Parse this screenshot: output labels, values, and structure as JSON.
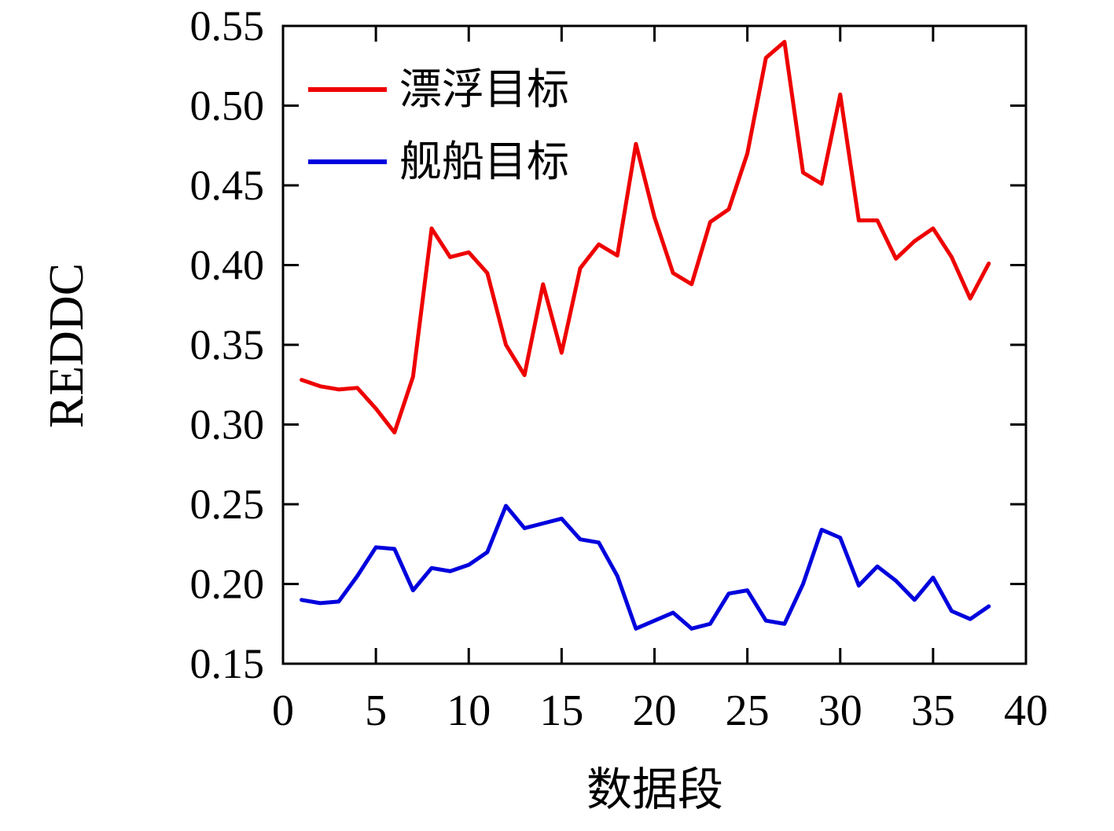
{
  "chart_data": {
    "type": "line",
    "title": "",
    "xlabel": "数据段",
    "ylabel": "REDDC",
    "xlim": [
      0,
      40
    ],
    "ylim": [
      0.15,
      0.55
    ],
    "xticks": [
      0,
      5,
      10,
      15,
      20,
      25,
      30,
      35,
      40
    ],
    "yticks": [
      0.15,
      0.2,
      0.25,
      0.3,
      0.35,
      0.4,
      0.45,
      0.5,
      0.55
    ],
    "grid": false,
    "legend_position": "top-left",
    "x": [
      1,
      2,
      3,
      4,
      5,
      6,
      7,
      8,
      9,
      10,
      11,
      12,
      13,
      14,
      15,
      16,
      17,
      18,
      19,
      20,
      21,
      22,
      23,
      24,
      25,
      26,
      27,
      28,
      29,
      30,
      31,
      32,
      33,
      34,
      35,
      36,
      37,
      38
    ],
    "series": [
      {
        "name": "漂浮目标",
        "color": "#ee0000",
        "values": [
          0.328,
          0.324,
          0.322,
          0.323,
          0.31,
          0.295,
          0.33,
          0.423,
          0.405,
          0.408,
          0.395,
          0.35,
          0.331,
          0.388,
          0.345,
          0.398,
          0.413,
          0.406,
          0.476,
          0.43,
          0.395,
          0.388,
          0.427,
          0.435,
          0.47,
          0.53,
          0.54,
          0.458,
          0.451,
          0.507,
          0.428,
          0.428,
          0.404,
          0.415,
          0.423,
          0.405,
          0.379,
          0.401
        ]
      },
      {
        "name": "舰船目标",
        "color": "#0000dd",
        "values": [
          0.19,
          0.188,
          0.189,
          0.205,
          0.223,
          0.222,
          0.196,
          0.21,
          0.208,
          0.212,
          0.22,
          0.249,
          0.235,
          0.238,
          0.241,
          0.228,
          0.226,
          0.205,
          0.172,
          0.177,
          0.182,
          0.172,
          0.175,
          0.194,
          0.196,
          0.177,
          0.175,
          0.2,
          0.234,
          0.229,
          0.199,
          0.211,
          0.202,
          0.19,
          0.204,
          0.183,
          0.178,
          0.186
        ]
      }
    ]
  }
}
